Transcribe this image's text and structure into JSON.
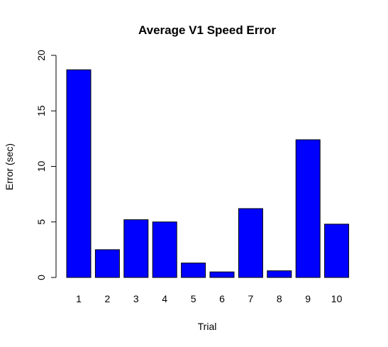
{
  "chart_data": {
    "type": "bar",
    "title": "Average V1 Speed Error",
    "xlabel": "Trial",
    "ylabel": "Error (sec)",
    "categories": [
      "1",
      "2",
      "3",
      "4",
      "5",
      "6",
      "7",
      "8",
      "9",
      "10"
    ],
    "values": [
      18.7,
      2.5,
      5.2,
      5.0,
      1.3,
      0.5,
      6.2,
      0.6,
      12.4,
      4.8
    ],
    "ylim": [
      0,
      20
    ],
    "yticks": [
      0,
      5,
      10,
      15,
      20
    ],
    "grid": false,
    "legend": "none",
    "bar_color": "#0000ff"
  }
}
